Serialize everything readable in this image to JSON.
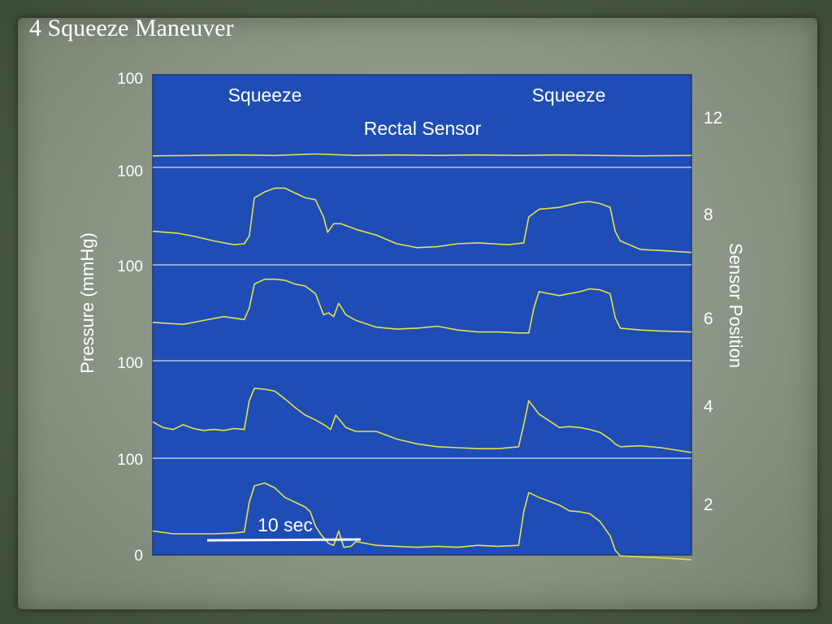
{
  "slide": {
    "title": "4 Squeeze Maneuver"
  },
  "colors": {
    "plot_background": "#1e4db6",
    "trace": "#e7e04a",
    "baseline": "#d8ddf0",
    "text": "#ffffff",
    "scale_bar": "#ffffff"
  },
  "chart_data": {
    "type": "line",
    "title": "",
    "xlabel": "",
    "ylabel": "Pressure (mmHg)",
    "ylabel_right": "Sensor Position",
    "left_tick_labels": [
      "100",
      "100",
      "100",
      "100",
      "100",
      "0"
    ],
    "right_tick_labels": [
      "12",
      "8",
      "6",
      "4",
      "2"
    ],
    "annotations": {
      "squeeze_1": "Squeeze",
      "squeeze_2": "Squeeze",
      "rectal_sensor": "Rectal Sensor",
      "scale_bar": "10 sec"
    },
    "x_unit": "seconds",
    "xlim": [
      0,
      53
    ],
    "ylim_per_channel": [
      0,
      100
    ],
    "grid": "channel baselines only",
    "series": [
      {
        "channel": 0,
        "sensor_position": 12,
        "points": [
          [
            0,
            12
          ],
          [
            4,
            12.5
          ],
          [
            8,
            13
          ],
          [
            12,
            12.5
          ],
          [
            16,
            14
          ],
          [
            20,
            12.5
          ],
          [
            24,
            13
          ],
          [
            28,
            12.5
          ],
          [
            32,
            13
          ],
          [
            36,
            12.5
          ],
          [
            40,
            13
          ],
          [
            44,
            12.5
          ],
          [
            48,
            12
          ],
          [
            53,
            12.5
          ]
        ]
      },
      {
        "channel": 1,
        "sensor_position": 8,
        "points": [
          [
            0,
            35
          ],
          [
            2.5,
            33
          ],
          [
            4,
            30
          ],
          [
            6,
            25
          ],
          [
            8,
            21
          ],
          [
            9,
            22
          ],
          [
            9.5,
            30
          ],
          [
            10,
            70
          ],
          [
            11,
            76
          ],
          [
            12,
            80
          ],
          [
            13,
            80
          ],
          [
            14,
            75
          ],
          [
            15,
            70
          ],
          [
            16,
            68
          ],
          [
            16.8,
            50
          ],
          [
            17.2,
            34
          ],
          [
            17.8,
            43
          ],
          [
            18.5,
            43
          ],
          [
            20,
            37
          ],
          [
            22,
            31
          ],
          [
            24,
            22
          ],
          [
            26,
            18
          ],
          [
            28,
            19
          ],
          [
            30,
            22
          ],
          [
            32,
            23
          ],
          [
            35,
            21
          ],
          [
            36.5,
            23
          ],
          [
            37,
            50
          ],
          [
            38,
            58
          ],
          [
            40,
            60
          ],
          [
            42,
            65
          ],
          [
            43,
            66
          ],
          [
            44,
            64
          ],
          [
            45,
            60
          ],
          [
            45.5,
            35
          ],
          [
            46,
            25
          ],
          [
            48,
            16
          ],
          [
            50,
            15
          ],
          [
            53,
            13
          ]
        ]
      },
      {
        "channel": 2,
        "sensor_position": 6,
        "points": [
          [
            0,
            40
          ],
          [
            3,
            38
          ],
          [
            5,
            42
          ],
          [
            7,
            46
          ],
          [
            9,
            43
          ],
          [
            9.5,
            55
          ],
          [
            10,
            80
          ],
          [
            11,
            85
          ],
          [
            12,
            85
          ],
          [
            13,
            84
          ],
          [
            14,
            80
          ],
          [
            15,
            78
          ],
          [
            16,
            70
          ],
          [
            16.8,
            48
          ],
          [
            17.3,
            50
          ],
          [
            17.8,
            46
          ],
          [
            18.3,
            60
          ],
          [
            19,
            48
          ],
          [
            20,
            42
          ],
          [
            22,
            35
          ],
          [
            24,
            33
          ],
          [
            26,
            34
          ],
          [
            28,
            36
          ],
          [
            30,
            32
          ],
          [
            32,
            30
          ],
          [
            34,
            30
          ],
          [
            36,
            29
          ],
          [
            37,
            29
          ],
          [
            37.5,
            55
          ],
          [
            38,
            72
          ],
          [
            40,
            68
          ],
          [
            42,
            72
          ],
          [
            43,
            75
          ],
          [
            44,
            74
          ],
          [
            45,
            70
          ],
          [
            45.5,
            45
          ],
          [
            46,
            34
          ],
          [
            48,
            32
          ],
          [
            50,
            31
          ],
          [
            53,
            30
          ]
        ]
      },
      {
        "channel": 3,
        "sensor_position": 4,
        "points": [
          [
            0,
            38
          ],
          [
            1,
            32
          ],
          [
            2,
            30
          ],
          [
            3,
            35
          ],
          [
            4,
            31
          ],
          [
            5,
            29
          ],
          [
            6,
            30
          ],
          [
            7,
            29
          ],
          [
            8,
            31
          ],
          [
            9,
            30
          ],
          [
            9.5,
            60
          ],
          [
            10,
            73
          ],
          [
            11,
            72
          ],
          [
            12,
            70
          ],
          [
            13,
            62
          ],
          [
            14,
            53
          ],
          [
            15,
            45
          ],
          [
            16,
            40
          ],
          [
            17,
            34
          ],
          [
            17.5,
            30
          ],
          [
            18,
            45
          ],
          [
            19,
            32
          ],
          [
            20,
            28
          ],
          [
            22,
            28
          ],
          [
            24,
            20
          ],
          [
            26,
            15
          ],
          [
            28,
            12
          ],
          [
            30,
            11
          ],
          [
            32,
            10
          ],
          [
            34,
            10
          ],
          [
            36,
            12
          ],
          [
            36.5,
            35
          ],
          [
            37,
            60
          ],
          [
            38,
            46
          ],
          [
            40,
            32
          ],
          [
            41,
            33
          ],
          [
            42,
            32
          ],
          [
            43,
            30
          ],
          [
            44,
            27
          ],
          [
            45,
            20
          ],
          [
            45.5,
            15
          ],
          [
            46,
            12
          ],
          [
            48,
            13
          ],
          [
            50,
            11
          ],
          [
            53,
            6
          ]
        ]
      },
      {
        "channel": 4,
        "sensor_position": 2,
        "points": [
          [
            0,
            25
          ],
          [
            2,
            22
          ],
          [
            4,
            22
          ],
          [
            6,
            22
          ],
          [
            8,
            23
          ],
          [
            9,
            24
          ],
          [
            9.5,
            55
          ],
          [
            10,
            72
          ],
          [
            11,
            75
          ],
          [
            12,
            70
          ],
          [
            13,
            60
          ],
          [
            14,
            55
          ],
          [
            15,
            50
          ],
          [
            15.5,
            45
          ],
          [
            16,
            30
          ],
          [
            16.5,
            22
          ],
          [
            17.3,
            12
          ],
          [
            17.8,
            10
          ],
          [
            18.3,
            25
          ],
          [
            18.8,
            8
          ],
          [
            19.5,
            9
          ],
          [
            20,
            14
          ],
          [
            22,
            10
          ],
          [
            24,
            9
          ],
          [
            26,
            8
          ],
          [
            28,
            9
          ],
          [
            30,
            8
          ],
          [
            32,
            10
          ],
          [
            34,
            9
          ],
          [
            36,
            10
          ],
          [
            36.5,
            45
          ],
          [
            37,
            65
          ],
          [
            38,
            60
          ],
          [
            40,
            52
          ],
          [
            41,
            46
          ],
          [
            42,
            45
          ],
          [
            43,
            43
          ],
          [
            44,
            35
          ],
          [
            45,
            20
          ],
          [
            45.5,
            5
          ],
          [
            46,
            -1
          ],
          [
            48,
            -2
          ],
          [
            50,
            -3
          ],
          [
            53,
            -5
          ]
        ]
      }
    ]
  }
}
